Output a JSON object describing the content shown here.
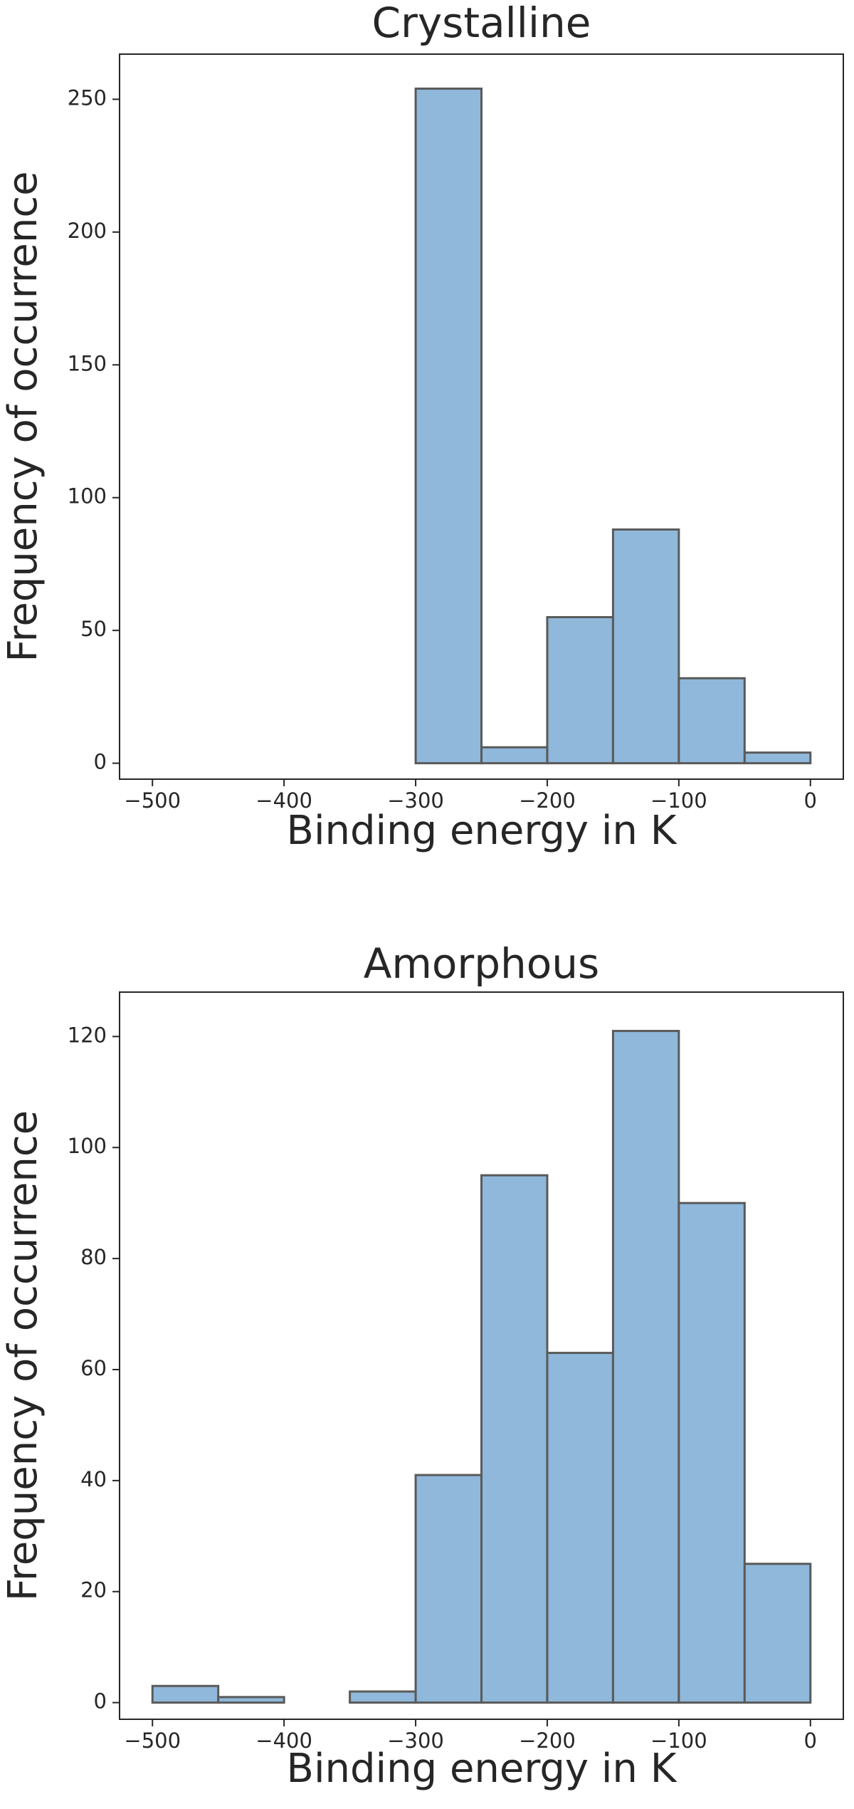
{
  "chart_data": [
    {
      "type": "histogram",
      "title": "Crystalline",
      "xlabel": "Binding energy in K",
      "ylabel": "Frequency of occurrence",
      "bins": [
        -500,
        -450,
        -400,
        -350,
        -300,
        -250,
        -200,
        -150,
        -100,
        -50,
        0
      ],
      "values": [
        0,
        0,
        0,
        0,
        254,
        6,
        55,
        88,
        32,
        4
      ],
      "color": "#8fb8da",
      "edgecolor": "#5a5a5a",
      "xlim": [
        -525,
        25
      ],
      "ylim": [
        -6,
        267
      ],
      "xticks": [
        {
          "value": -500,
          "label": "−500"
        },
        {
          "value": -400,
          "label": "−400"
        },
        {
          "value": -300,
          "label": "−300"
        },
        {
          "value": -200,
          "label": "−200"
        },
        {
          "value": -100,
          "label": "−100"
        },
        0
      ],
      "yticks": [
        0,
        50,
        100,
        150,
        200,
        250
      ]
    },
    {
      "type": "histogram",
      "title": "Amorphous",
      "xlabel": "Binding energy in K",
      "ylabel": "Frequency of occurrence",
      "bins": [
        -500,
        -450,
        -400,
        -350,
        -300,
        -250,
        -200,
        -150,
        -100,
        -50,
        0
      ],
      "values": [
        3,
        1,
        0,
        2,
        41,
        95,
        63,
        121,
        90,
        25
      ],
      "color": "#8fb8da",
      "edgecolor": "#5a5a5a",
      "xlim": [
        -525,
        25
      ],
      "ylim": [
        -3,
        128
      ],
      "xticks": [
        {
          "value": -500,
          "label": "−500"
        },
        {
          "value": -400,
          "label": "−400"
        },
        {
          "value": -300,
          "label": "−300"
        },
        {
          "value": -200,
          "label": "−200"
        },
        {
          "value": -100,
          "label": "−100"
        },
        0
      ],
      "yticks": [
        0,
        20,
        40,
        60,
        80,
        100,
        120
      ]
    }
  ]
}
